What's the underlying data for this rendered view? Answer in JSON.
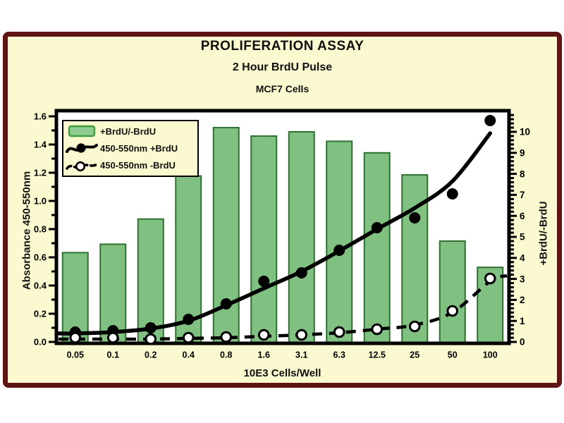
{
  "titles": {
    "main": "PROLIFERATION ASSAY",
    "subtitle": "2 Hour BrdU Pulse",
    "cell_line": "MCF7 Cells"
  },
  "legend": {
    "position": "top-left",
    "items": [
      {
        "symbol": "green-bar-swatch",
        "label": "+BrdU/-BrdU"
      },
      {
        "symbol": "solid-line-filled-circle",
        "label": "450-550nm +BrdU"
      },
      {
        "symbol": "dashed-line-open-circle",
        "label": "450-550nm -BrdU"
      }
    ]
  },
  "colors": {
    "panel_bg": "#FBF9D0",
    "frame_border": "#5D1413",
    "plot_bg": "#FFFFFF",
    "bar_fill": "#80C182",
    "bar_border": "#2F7030",
    "swatch_fill": "#8FCB8F",
    "swatch_border": "#3F9C3F",
    "line_color": "#000000",
    "text_color": "#000000"
  },
  "chart_data": {
    "type": "bar",
    "title": "PROLIFERATION ASSAY",
    "subtitle": "2 Hour BrdU Pulse",
    "annotation": "MCF7 Cells",
    "xlabel": "10E3 Cells/Well",
    "ylabel_left": "Absorbance 450-550nm",
    "ylabel_right": "+BrdU/-BrdU",
    "grid": false,
    "legend_position": "top-left",
    "categories": [
      "0.05",
      "0.1",
      "0.2",
      "0.4",
      "0.8",
      "1.6",
      "3.1",
      "6.3",
      "12.5",
      "25",
      "50",
      "100"
    ],
    "left_axis": {
      "min": 0,
      "max": 1.6,
      "major_step": 0.2,
      "minor_step": 0.1,
      "tick_labels": [
        "0.0",
        "0.2",
        "0.4",
        "0.6",
        "0.8",
        "1.0",
        "1.2",
        "1.4",
        "1.6"
      ]
    },
    "right_axis": {
      "min": 0,
      "max": 10,
      "major_step": 1,
      "minor_step": 0.2,
      "tick_labels": [
        "0",
        "1",
        "2",
        "3",
        "4",
        "5",
        "6",
        "7",
        "8",
        "9",
        "10"
      ]
    },
    "bars": {
      "name": "+BrdU/-BrdU",
      "axis": "right",
      "values": [
        4.25,
        4.65,
        5.85,
        7.9,
        10.2,
        9.8,
        10.0,
        9.55,
        9.0,
        7.95,
        4.8,
        3.55
      ]
    },
    "series": [
      {
        "name": "450-550nm +BrdU",
        "axis": "left",
        "marker": "filled-circle",
        "line": "solid",
        "values": [
          0.07,
          0.08,
          0.1,
          0.16,
          0.27,
          0.43,
          0.49,
          0.65,
          0.81,
          0.88,
          1.05,
          1.57
        ],
        "fit_values": [
          0.06,
          0.07,
          0.095,
          0.15,
          0.26,
          0.38,
          0.5,
          0.645,
          0.8,
          0.95,
          1.14,
          1.48
        ]
      },
      {
        "name": "450-550nm -BrdU",
        "axis": "left",
        "marker": "open-circle",
        "line": "dashed",
        "values": [
          0.03,
          0.03,
          0.02,
          0.03,
          0.035,
          0.05,
          0.05,
          0.07,
          0.09,
          0.11,
          0.22,
          0.45
        ],
        "fit_values": [
          0.02,
          0.02,
          0.02,
          0.025,
          0.03,
          0.04,
          0.05,
          0.065,
          0.09,
          0.12,
          0.21,
          0.43
        ],
        "fit_right_edge_value": 0.47
      }
    ]
  }
}
